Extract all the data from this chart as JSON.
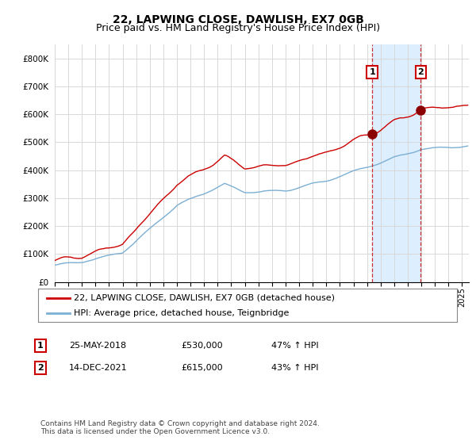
{
  "title": "22, LAPWING CLOSE, DAWLISH, EX7 0GB",
  "subtitle": "Price paid vs. HM Land Registry's House Price Index (HPI)",
  "ylim": [
    0,
    850000
  ],
  "yticks": [
    0,
    100000,
    200000,
    300000,
    400000,
    500000,
    600000,
    700000,
    800000
  ],
  "ytick_labels": [
    "£0",
    "£100K",
    "£200K",
    "£300K",
    "£400K",
    "£500K",
    "£600K",
    "£700K",
    "£800K"
  ],
  "hpi_color": "#7bafd4",
  "price_color": "#cc0000",
  "sale1_year": 2018.38,
  "sale1_price": 530000,
  "sale2_year": 2021.96,
  "sale2_price": 615000,
  "legend_line1": "22, LAPWING CLOSE, DAWLISH, EX7 0GB (detached house)",
  "legend_line2": "HPI: Average price, detached house, Teignbridge",
  "table_row1": [
    "1",
    "25-MAY-2018",
    "£530,000",
    "47% ↑ HPI"
  ],
  "table_row2": [
    "2",
    "14-DEC-2021",
    "£615,000",
    "43% ↑ HPI"
  ],
  "footer1": "Contains HM Land Registry data © Crown copyright and database right 2024.",
  "footer2": "This data is licensed under the Open Government Licence v3.0.",
  "title_fontsize": 10,
  "subtitle_fontsize": 9,
  "tick_fontsize": 7.5,
  "legend_fontsize": 8,
  "table_fontsize": 8,
  "footer_fontsize": 6.5,
  "background_color": "#ffffff",
  "grid_color": "#d8d8d8",
  "shade_color": "#ddeeff"
}
